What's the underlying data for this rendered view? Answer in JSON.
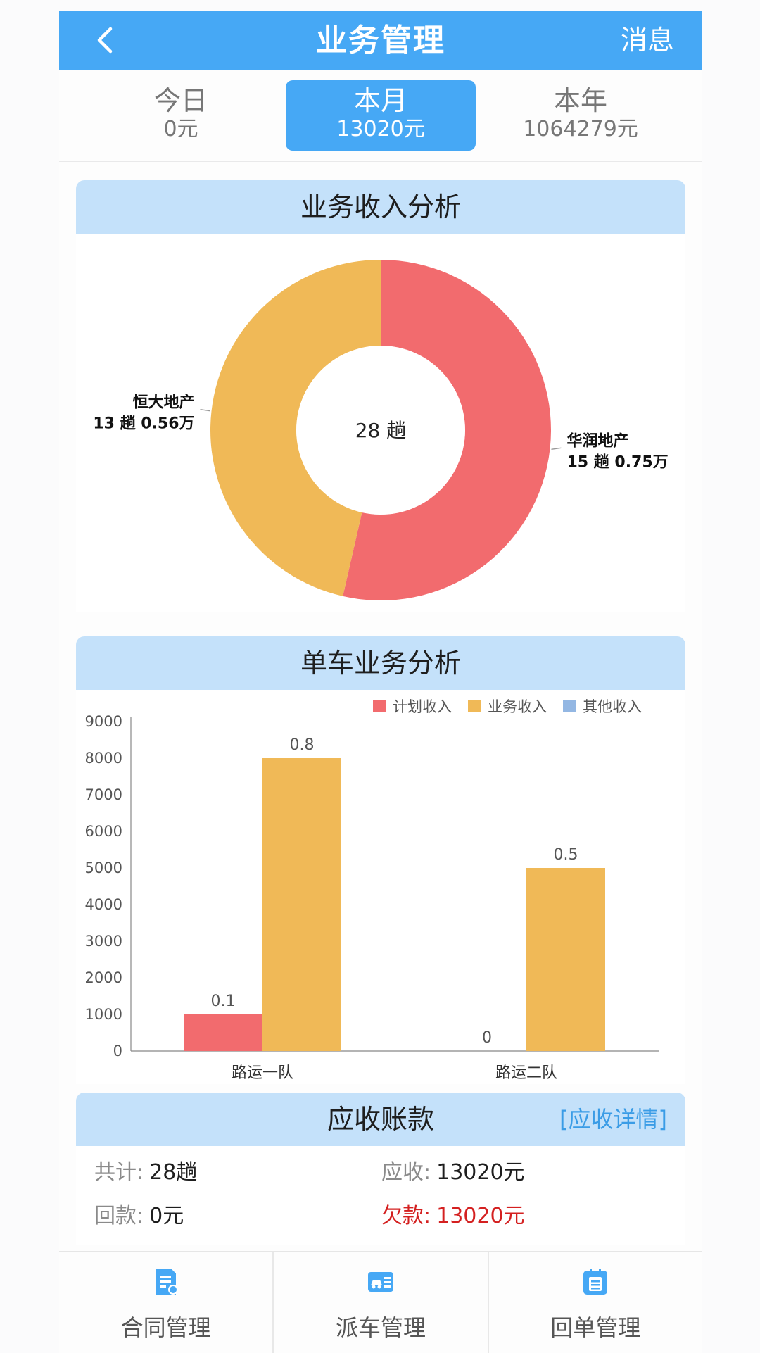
{
  "header": {
    "title": "业务管理",
    "right_link": "消息",
    "back_icon": "chevron-left-icon"
  },
  "tabs": [
    {
      "label": "今日",
      "value": "0元",
      "active": false
    },
    {
      "label": "本月",
      "value": "13020元",
      "active": true
    },
    {
      "label": "本年",
      "value": "1064279元",
      "active": false
    }
  ],
  "income_section": {
    "title": "业务收入分析"
  },
  "truck_section": {
    "title": "单车业务分析"
  },
  "receivable": {
    "title": "应收账款",
    "detail_link": "[应收详情]",
    "total_label": "共计:",
    "total_value": "28趟",
    "due_label": "应收:",
    "due_value": "13020元",
    "paid_label": "回款:",
    "paid_value": "0元",
    "debt_label": "欠款:",
    "debt_value": "13020元"
  },
  "bottom_nav": [
    {
      "label": "合同管理",
      "icon": "contract-icon"
    },
    {
      "label": "派车管理",
      "icon": "dispatch-car-icon"
    },
    {
      "label": "回单管理",
      "icon": "receipt-icon"
    }
  ],
  "colors": {
    "accent": "#46a8f5",
    "red": "#f26b6e",
    "yellow": "#f0b957",
    "blue": "#93b7e3",
    "debt": "#d42020"
  },
  "chart_data": [
    {
      "type": "pie",
      "center_label": "28 趟",
      "slices": [
        {
          "name": "华润地产",
          "line1": "华润地产",
          "line2": "15 趟 0.75万",
          "trips": 15,
          "amount_wan": 0.75,
          "color": "#f26b6e"
        },
        {
          "name": "恒大地产",
          "line1": "恒大地产",
          "line2": "13 趟 0.56万",
          "trips": 13,
          "amount_wan": 0.56,
          "color": "#f0b957"
        }
      ]
    },
    {
      "type": "bar",
      "categories": [
        "路运一队",
        "路运二队"
      ],
      "ylim": [
        0,
        9000
      ],
      "yticks": [
        "0",
        "1000",
        "2000",
        "3000",
        "4000",
        "5000",
        "6000",
        "7000",
        "8000",
        "9000"
      ],
      "grid": false,
      "legend_position": "top-right",
      "series": [
        {
          "name": "计划收入",
          "color": "#f26b6e",
          "values": [
            1000,
            0
          ],
          "labels": [
            "0.1",
            "0"
          ]
        },
        {
          "name": "业务收入",
          "color": "#f0b957",
          "values": [
            8000,
            5000
          ],
          "labels": [
            "0.8",
            "0.5"
          ]
        },
        {
          "name": "其他收入",
          "color": "#93b7e3",
          "values": [
            0,
            0
          ],
          "labels": [
            "",
            ""
          ]
        }
      ]
    }
  ]
}
